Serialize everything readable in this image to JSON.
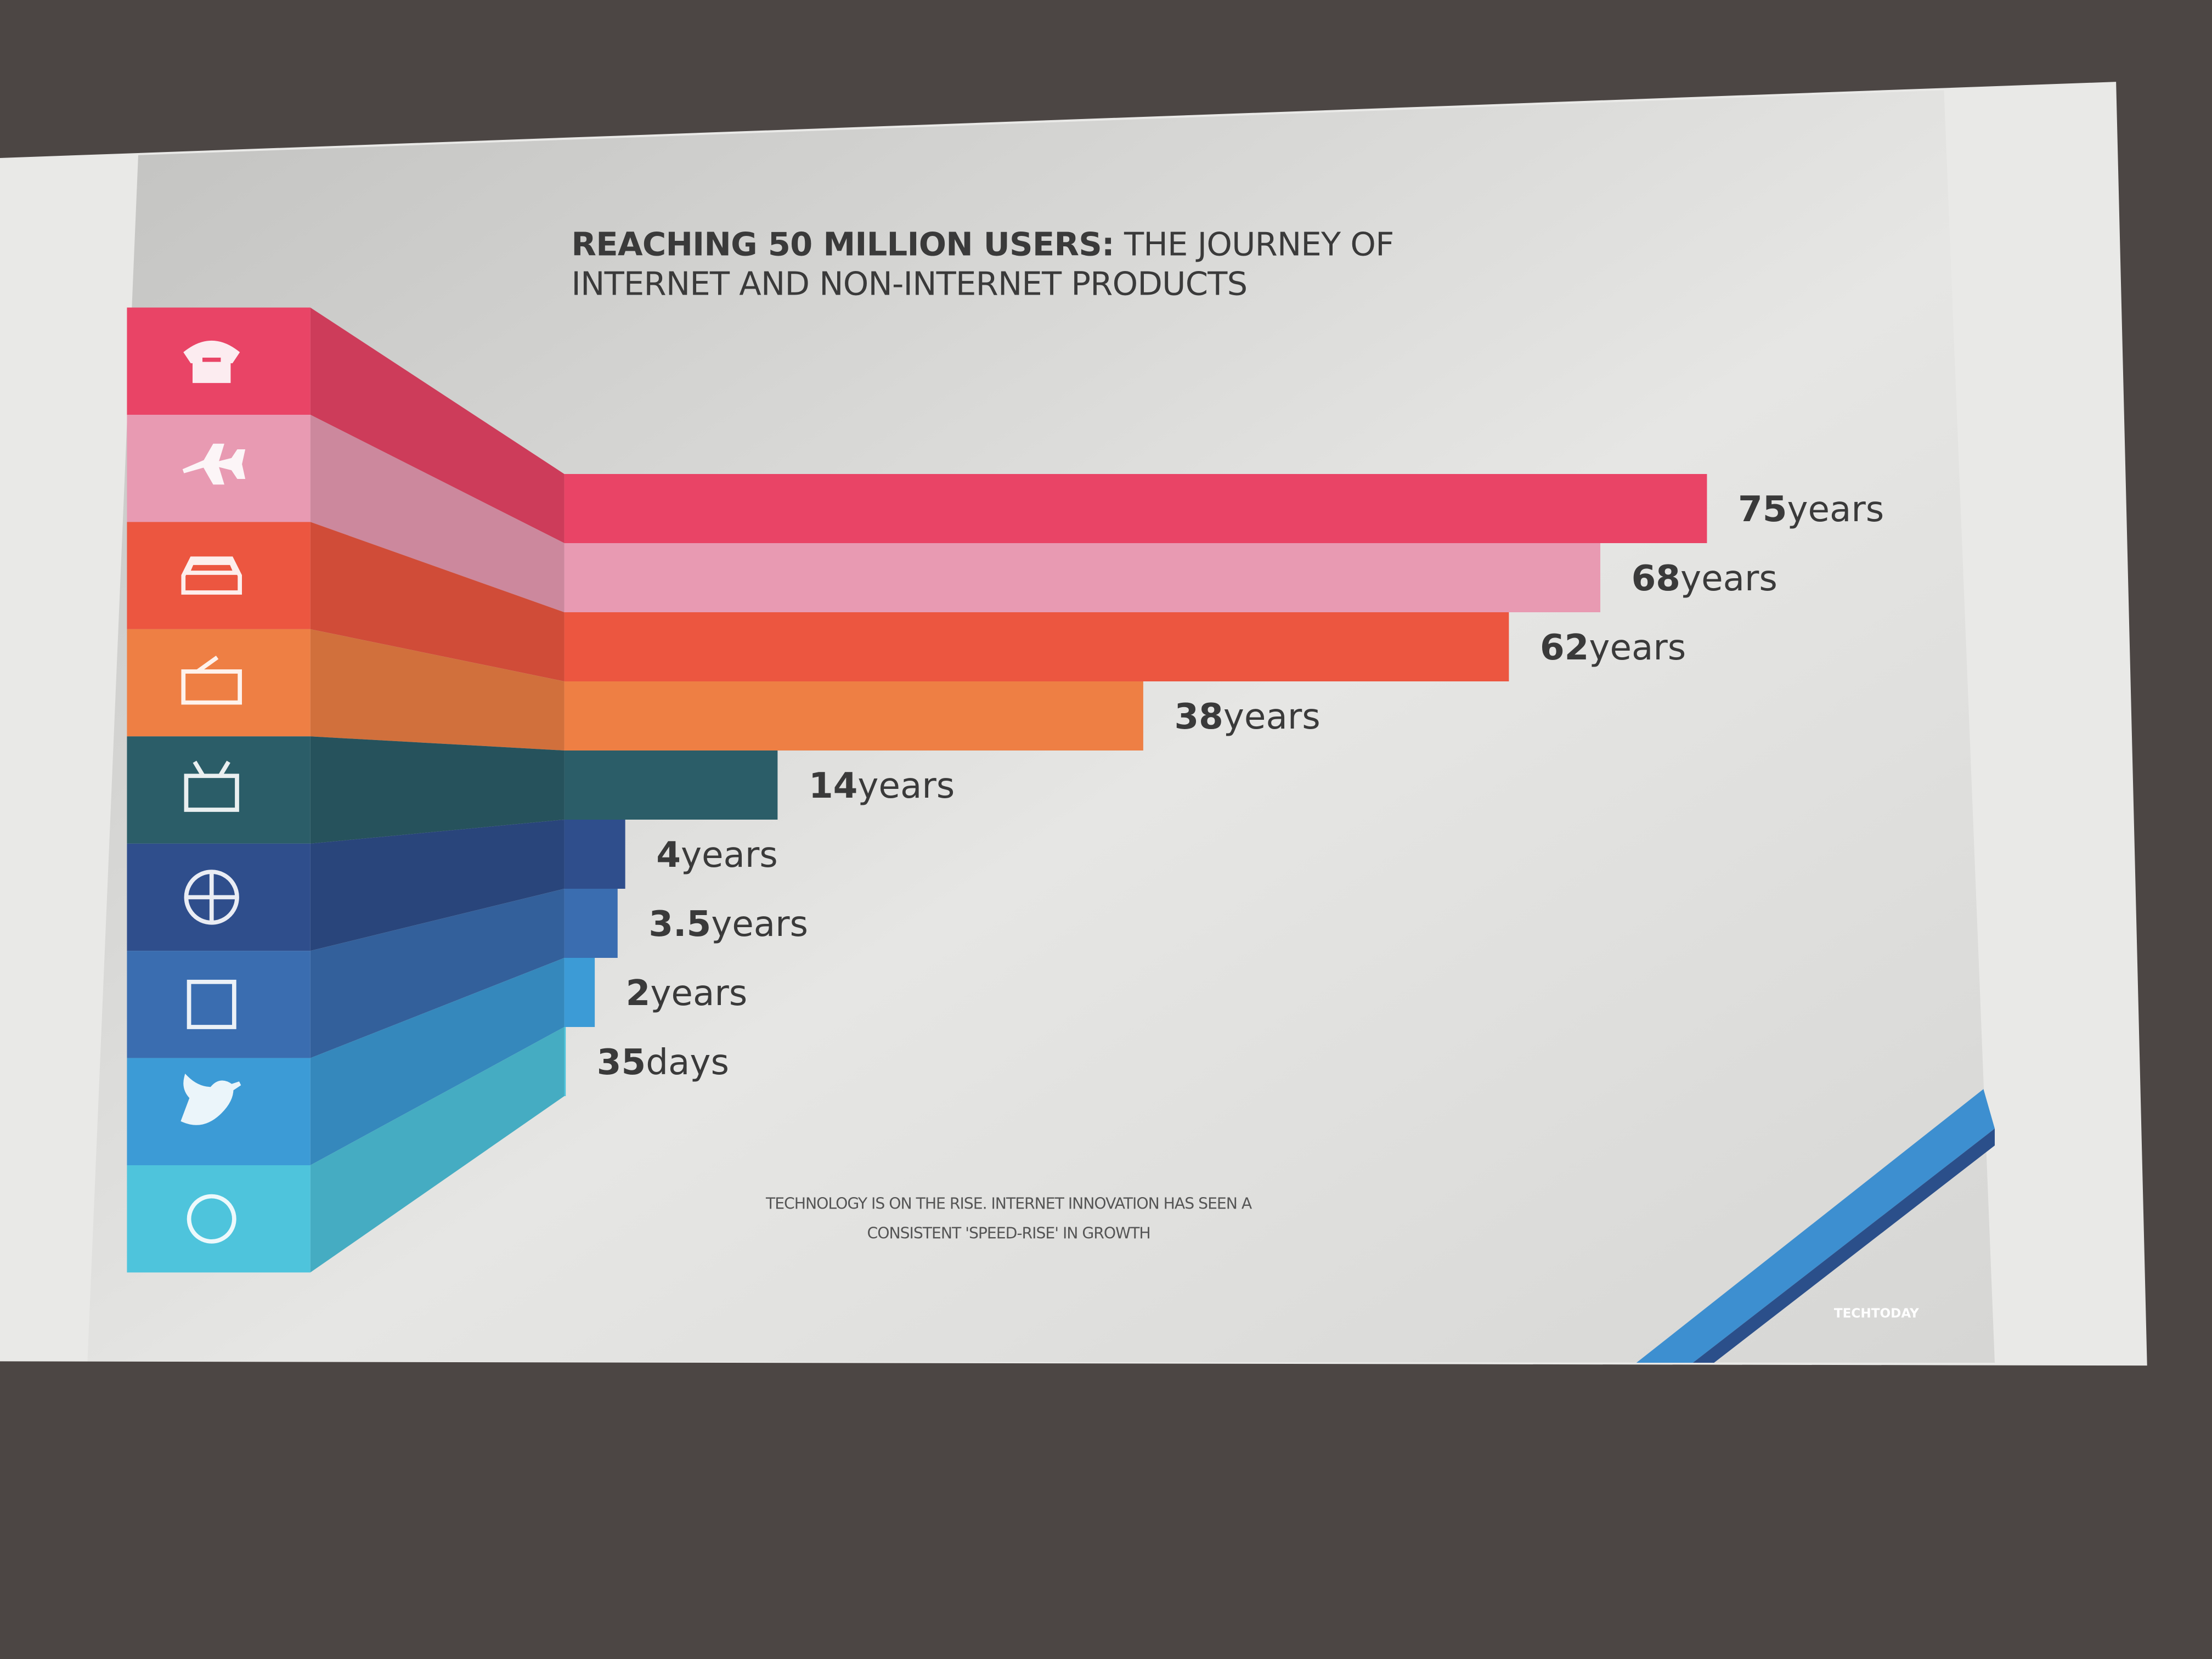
{
  "chart_data": {
    "type": "bar",
    "title": "REACHING 50 MILLION USERS:",
    "subtitle": "THE JOURNEY OF INTERNET AND NON-INTERNET PRODUCTS",
    "categories": [
      null,
      null,
      null,
      null,
      null,
      null,
      null,
      null,
      null
    ],
    "values": [
      75,
      68,
      62,
      38,
      14,
      4,
      3.5,
      2,
      0.0959
    ],
    "value_labels": [
      "75years",
      "68years",
      "62years",
      "38years",
      "14years",
      "4years",
      "3.5years",
      "2years",
      "35days"
    ],
    "colors": [
      "#e94466",
      "#e89ab2",
      "#ec5640",
      "#ee7f44",
      "#2b5d68",
      "#2f4e8c",
      "#3a6db0",
      "#3c9bd6",
      "#4ec4dc"
    ],
    "note": "TECHNOLOGY IS ON THE RISE. INTERNET INNOVATION HAS SEEN A CONSISTENT 'SPEED-RISE' IN GROWTH",
    "logo": "TECHTODAY"
  }
}
